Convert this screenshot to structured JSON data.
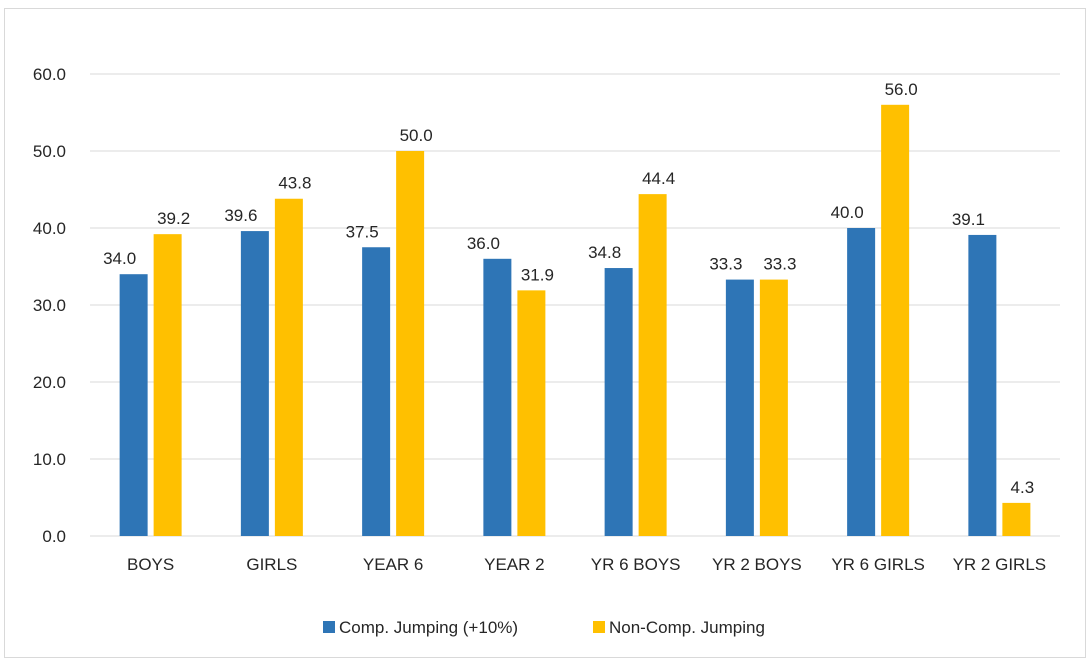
{
  "chart_data": {
    "type": "bar",
    "categories": [
      "BOYS",
      "GIRLS",
      "YEAR 6",
      "YEAR 2",
      "YR 6 BOYS",
      "YR 2 BOYS",
      "YR 6 GIRLS",
      "YR 2 GIRLS"
    ],
    "series": [
      {
        "name": "Comp. Jumping (+10%)",
        "color": "#2e75b6",
        "values": [
          34.0,
          39.6,
          37.5,
          36.0,
          34.8,
          33.3,
          40.0,
          39.1
        ]
      },
      {
        "name": "Non-Comp. Jumping",
        "color": "#ffc000",
        "values": [
          39.2,
          43.8,
          50.0,
          31.9,
          44.4,
          33.3,
          56.0,
          4.3
        ]
      }
    ],
    "title": "",
    "xlabel": "",
    "ylabel": "",
    "ylim": [
      0,
      60
    ],
    "yticks": [
      0,
      10,
      20,
      30,
      40,
      50,
      60
    ],
    "tick_decimals": 1,
    "grid": true,
    "legend_position": "bottom",
    "colors": {
      "gridline": "#d9d9d9",
      "text": "#262626"
    }
  }
}
